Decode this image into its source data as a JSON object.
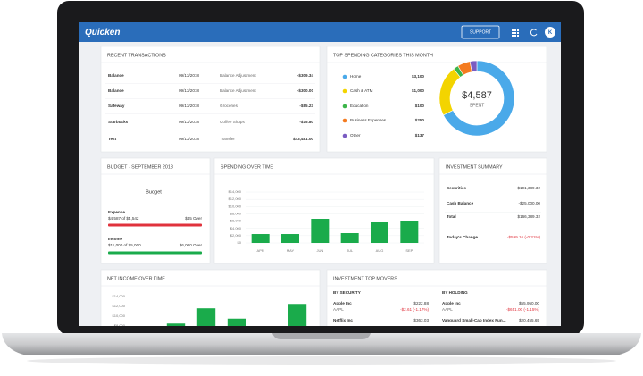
{
  "header": {
    "logo": "Quicken",
    "support": "SUPPORT",
    "avatar": "K"
  },
  "recent_transactions": {
    "title": "RECENT TRANSACTIONS",
    "rows": [
      [
        "Balance",
        "09/13/2018",
        "Balance Adjustment",
        "-$309.34"
      ],
      [
        "Balance",
        "09/13/2018",
        "Balance Adjustment",
        "-$300.00"
      ],
      [
        "Safeway",
        "09/13/2018",
        "Groceries",
        "-$85.23"
      ],
      [
        "Starbucks",
        "09/13/2018",
        "Coffee Shops",
        "-$15.80"
      ],
      [
        "Test",
        "09/13/2018",
        "Transfer",
        "$23,481.00"
      ]
    ]
  },
  "budget": {
    "title": "BUDGET - SEPTEMBER 2018",
    "subtitle": "Budget",
    "items": [
      {
        "name": "Expense",
        "amount": "$4,587 of $4,542",
        "status": "$45 Over",
        "color": "#e0323c"
      },
      {
        "name": "Income",
        "amount": "$11,000 of $5,000",
        "status": "$6,000 Over",
        "color": "#1aab4b"
      }
    ]
  },
  "investment_summary": {
    "title": "INVESTMENT SUMMARY",
    "rows": [
      [
        "Securities",
        "$191,389.32"
      ],
      [
        "Cash Balance",
        "-$25,000.00"
      ],
      [
        "Total",
        "$166,389.32"
      ],
      [
        "Today's Change",
        "-$599.16 (-0.31%)"
      ]
    ]
  },
  "top_movers": {
    "title": "INVESTMENT TOP MOVERS",
    "columns": [
      {
        "heading": "BY SECURITY",
        "items": [
          {
            "name": "Apple Inc",
            "symbol": "AAPL",
            "value": "$222.88",
            "change": "-$2.61 (-1.17%)"
          },
          {
            "name": "Netflix Inc",
            "value": "$363.03"
          }
        ]
      },
      {
        "heading": "BY HOLDING",
        "items": [
          {
            "name": "Apple Inc",
            "symbol": "AAPL",
            "value": "$55,950.00",
            "change": "-$651.00 (-1.15%)"
          },
          {
            "name": "Vanguard Small-Cap Index Fun...",
            "value": "$20,455.65"
          }
        ]
      }
    ]
  },
  "chart_data": [
    {
      "type": "pie",
      "title": "TOP SPENDING CATEGORIES THIS MONTH",
      "categories": [
        "Home",
        "Cash & ATM",
        "Education",
        "Business Expenses",
        "Other"
      ],
      "values": [
        3100,
        1000,
        100,
        250,
        137
      ],
      "value_labels": [
        "$3,100",
        "$1,000",
        "$100",
        "$250",
        "$137"
      ],
      "colors": [
        "#4aa9e9",
        "#f3d400",
        "#3cb54a",
        "#f47b20",
        "#7a5cc2"
      ],
      "center_value": "$4,587",
      "center_label": "SPENT"
    },
    {
      "type": "bar",
      "title": "SPENDING OVER TIME",
      "categories": [
        "APR",
        "MAY",
        "JUN",
        "JUL",
        "AUG",
        "SEP"
      ],
      "values": [
        2450,
        2450,
        6630,
        2700,
        5650,
        6140
      ],
      "color": "#1aab4b",
      "ylim": [
        0,
        14000
      ],
      "yticks": [
        {
          "value": 0,
          "label": "$0"
        },
        {
          "value": 2000,
          "label": "$2,000"
        },
        {
          "value": 4000,
          "label": "$4,000"
        },
        {
          "value": 6000,
          "label": "$6,000"
        },
        {
          "value": 8000,
          "label": "$8,000"
        },
        {
          "value": 10000,
          "label": "$10,000"
        },
        {
          "value": 12000,
          "label": "$12,000"
        },
        {
          "value": 14000,
          "label": "$14,000"
        }
      ],
      "grid": true
    },
    {
      "type": "bar",
      "title": "NET INCOME OVER TIME",
      "categories": [
        null,
        null,
        null,
        null,
        null,
        null
      ],
      "values": [
        null,
        8500,
        11600,
        9500,
        null,
        12500
      ],
      "color": "#1aab4b",
      "ylim": [
        0,
        14000
      ],
      "yticks": [
        {
          "value": 8000,
          "label": "$8,000"
        },
        {
          "value": 10000,
          "label": "$10,000"
        },
        {
          "value": 12000,
          "label": "$12,000"
        },
        {
          "value": 14000,
          "label": "$14,000"
        }
      ],
      "grid": false
    }
  ]
}
